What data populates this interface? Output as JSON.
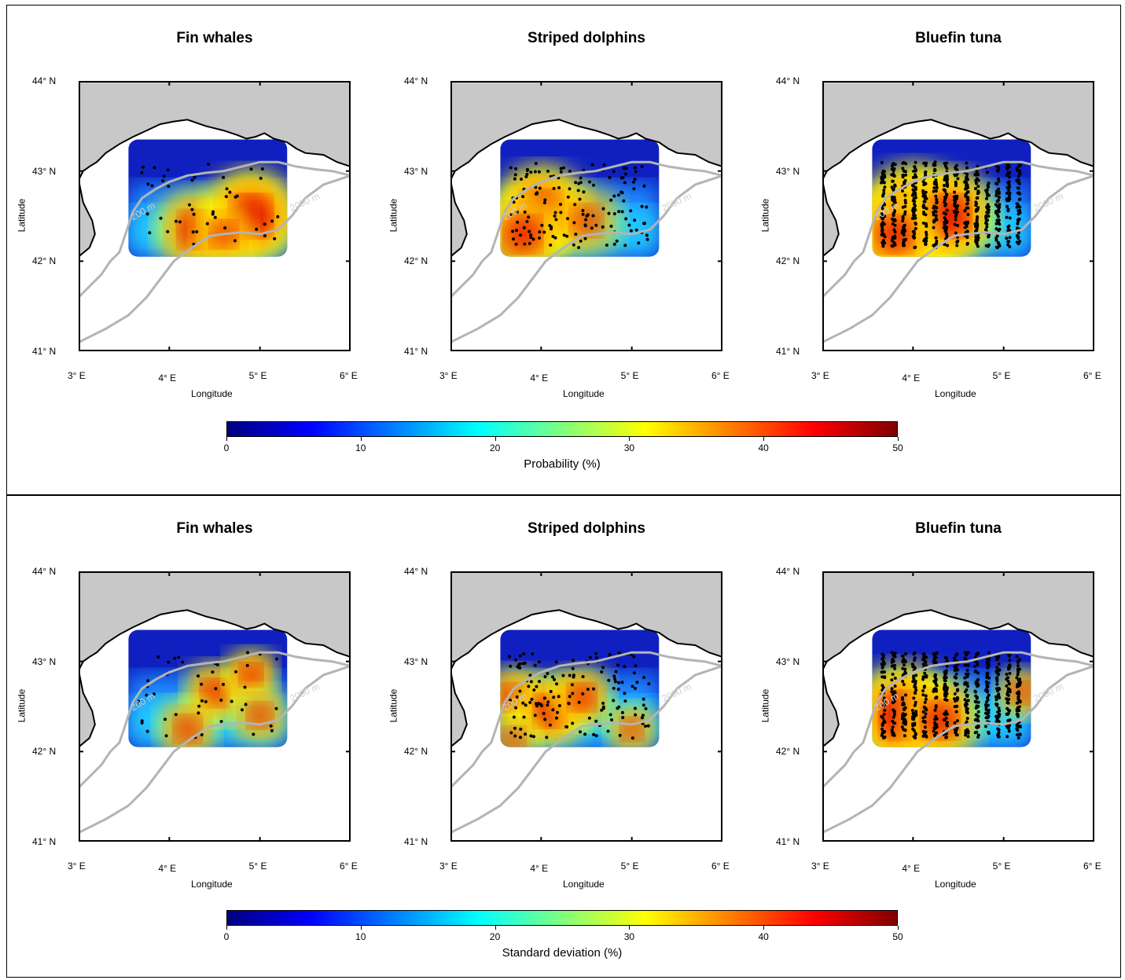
{
  "colors": {
    "land": "#c8c8c8",
    "coast": "#000000",
    "isobath": "#b4b4b4",
    "points": "#000000",
    "colormap": [
      "#00007f",
      "#0000ff",
      "#007fff",
      "#00ffff",
      "#7fff7f",
      "#ffff00",
      "#ff7f00",
      "#ff0000",
      "#7f0000"
    ]
  },
  "species": [
    "Fin whales",
    "Striped dolphins",
    "Bluefin tuna"
  ],
  "axes": {
    "xlabel": "Longitude",
    "ylabel": "Latitude",
    "xticks": [
      "3° E",
      "4° E",
      "5° E",
      "6° E"
    ],
    "yticks": [
      "44° N",
      "43° N",
      "42° N",
      "41° N"
    ]
  },
  "isobaths": {
    "shallow": "200 m",
    "deep": "2000 m"
  },
  "rows": [
    {
      "id": "probability",
      "cbar_title": "Probability (%)",
      "cbar_ticks": [
        "0",
        "10",
        "20",
        "30",
        "40",
        "50"
      ]
    },
    {
      "id": "sd",
      "cbar_title": "Standard deviation (%)",
      "cbar_ticks": [
        "0",
        "10",
        "20",
        "30",
        "40",
        "50"
      ]
    }
  ]
}
